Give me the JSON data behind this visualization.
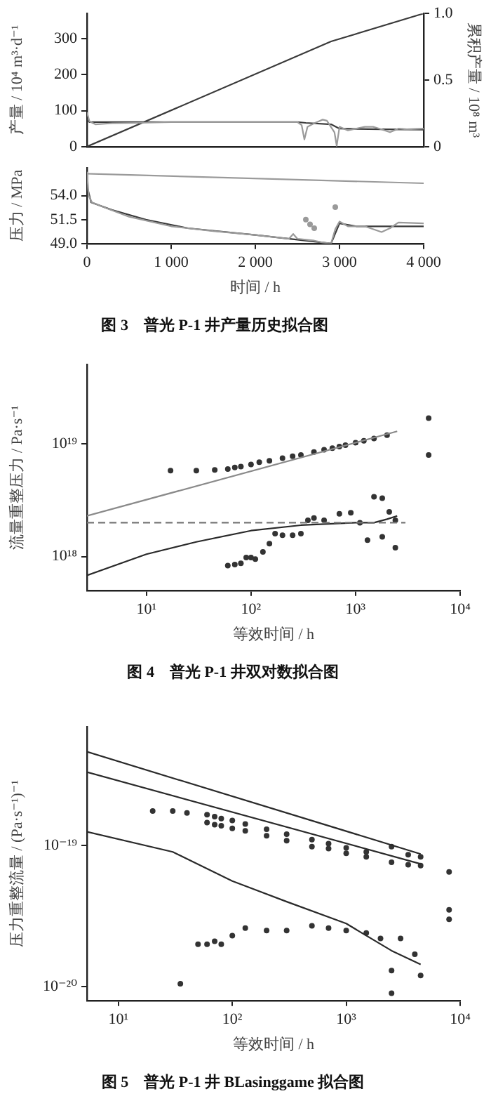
{
  "chart_data": [
    {
      "type": "line",
      "ylabel": "产量 / 10⁴ m³·d⁻¹",
      "y2label": "累积产量 / 10⁸ m³",
      "xlim": [
        0,
        4000
      ],
      "ylim": [
        0,
        370
      ],
      "yticks": [
        0,
        100,
        200,
        300
      ],
      "y2lim": [
        0,
        1
      ],
      "y2ticks": [
        0,
        0.5,
        {
          "value": 1,
          "label": "1.0"
        }
      ],
      "tick_labels": "y",
      "grid": false,
      "legend": false,
      "marker": "none",
      "series": [
        {
          "color": "#9a9a9a",
          "x": [
            0,
            30,
            100,
            300,
            600,
            1000,
            1500,
            2000,
            2400,
            2500,
            2550,
            2583,
            2620,
            2700,
            2750,
            2800,
            2850,
            2940,
            2967,
            3000,
            3100,
            3200,
            3300,
            3400,
            3500,
            3600,
            3700,
            3800,
            4000
          ],
          "values": [
            95,
            70,
            62,
            65,
            66,
            68,
            68,
            68,
            68,
            68,
            60,
            20,
            55,
            65,
            70,
            75,
            72,
            40,
            2,
            55,
            45,
            50,
            55,
            55,
            48,
            40,
            50,
            48,
            50
          ]
        },
        {
          "color": "#3a3a3a",
          "x": [
            0,
            30,
            100,
            500,
            1000,
            2000,
            2500,
            2600,
            2900,
            3000,
            3500,
            4000
          ],
          "values": [
            75,
            68,
            68,
            68,
            68,
            68,
            68,
            66,
            62,
            50,
            48,
            47
          ]
        },
        {
          "color": "#3a3a3a",
          "axis": "y2",
          "x": [
            0,
            2900,
            4000
          ],
          "values": [
            0,
            0.79,
            1.0
          ]
        }
      ]
    },
    {
      "type": "line",
      "title": "图 3　普光 P-1 井产量历史拟合图",
      "xlabel": "时间 / h",
      "ylabel": "压力 / MPa",
      "xlim": [
        0,
        4000
      ],
      "xticks": [
        0,
        {
          "value": 1000,
          "label": "1 000"
        },
        {
          "value": 2000,
          "label": "2 000"
        },
        {
          "value": 3000,
          "label": "3 000"
        },
        {
          "value": 4000,
          "label": "4 000"
        }
      ],
      "ylim": [
        49,
        56.9
      ],
      "yticks": [
        {
          "value": 49,
          "label": "49.0"
        },
        51.5,
        {
          "value": 54,
          "label": "54.0"
        }
      ],
      "grid": false,
      "legend": false,
      "marker": "none",
      "series": [
        {
          "color": "#9a9a9a",
          "x": [
            0,
            4000
          ],
          "values": [
            56.3,
            55.3
          ]
        },
        {
          "color": "#9a9a9a",
          "x": [
            0,
            20,
            60,
            200,
            500,
            1000,
            1500,
            2000,
            2400,
            2450,
            2500,
            2600,
            2700,
            2800,
            2900,
            2950,
            3000,
            3100,
            3300,
            3500,
            3600,
            3700,
            4000
          ],
          "values": [
            56.5,
            54,
            53.3,
            52.8,
            51.8,
            50.8,
            50.3,
            49.9,
            49.5,
            50,
            49.5,
            49.4,
            49.3,
            49.1,
            49,
            50.5,
            51.3,
            50.8,
            50.8,
            50.2,
            50.6,
            51.2,
            51.1
          ]
        },
        {
          "color": "#3a3a3a",
          "x": [
            0,
            50,
            300,
            700,
            1200,
            2000,
            2500,
            2800,
            2900,
            3000,
            3200,
            4000
          ],
          "values": [
            55,
            53.3,
            52.5,
            51.5,
            50.6,
            49.9,
            49.4,
            49.1,
            49.0,
            51.1,
            50.8,
            50.8
          ]
        },
        {
          "color": "#9a9a9a",
          "type": "scatter",
          "marker": "circle",
          "x": [
            2600,
            2650,
            2700,
            2950
          ],
          "values": [
            51.5,
            51,
            50.6,
            52.8
          ]
        }
      ]
    },
    {
      "type": "line",
      "title": "图 4　普光 P-1 井双对数拟合图",
      "xlabel": "等效时间 / h",
      "ylabel": "流量重整压力 / Pa·s⁻¹",
      "log": "xy",
      "xlim": [
        2.7,
        10000
      ],
      "xticks": [
        {
          "value": 10,
          "label": "10¹"
        },
        {
          "value": 100,
          "label": "10²"
        },
        {
          "value": 1000,
          "label": "10³"
        },
        {
          "value": 10000,
          "label": "10⁴"
        }
      ],
      "ylim": [
        5e+17,
        5.1e+19
      ],
      "yticks": [
        {
          "value": 1e+18,
          "label": "10¹⁸"
        },
        {
          "value": 1e+19,
          "label": "10¹⁹"
        }
      ],
      "grid": false,
      "legend": false,
      "marker": "none",
      "series": [
        {
          "color": "#8a8a8a",
          "x": [
            2.7,
            2500
          ],
          "values": [
            2.3e+18,
            1.3e+19
          ]
        },
        {
          "color": "#777777",
          "line_style": "dashed",
          "x": [
            2.7,
            3000
          ],
          "values": [
            2e+18,
            2e+18
          ]
        },
        {
          "color": "#2a2a2a",
          "x": [
            2.7,
            10,
            30,
            100,
            300,
            1000,
            1500,
            2000,
            2500
          ],
          "values": [
            6.8e+17,
            1.05e+18,
            1.35e+18,
            1.7e+18,
            1.9e+18,
            2e+18,
            2e+18,
            2.15e+18,
            2.3e+18
          ]
        },
        {
          "color": "#333333",
          "type": "scatter",
          "marker": "circle",
          "x": [
            17,
            30,
            45,
            60,
            70,
            80,
            100,
            120,
            150,
            200,
            250,
            300,
            400,
            500,
            600,
            700,
            800,
            1000,
            1200,
            1500,
            2000,
            5000,
            5000
          ],
          "values": [
            5.8e+18,
            5.8e+18,
            5.9e+18,
            6e+18,
            6.2e+18,
            6.3e+18,
            6.6e+18,
            6.9e+18,
            7.1e+18,
            7.5e+18,
            7.8e+18,
            8e+18,
            8.5e+18,
            8.9e+18,
            9.2e+18,
            9.5e+18,
            9.8e+18,
            1.03e+19,
            1.07e+19,
            1.12e+19,
            1.2e+19,
            1.7e+19,
            8e+18
          ]
        },
        {
          "color": "#333333",
          "type": "scatter",
          "marker": "circle",
          "x": [
            60,
            70,
            80,
            90,
            100,
            110,
            130,
            150,
            170,
            200,
            250,
            300,
            350,
            400,
            500,
            700,
            900,
            1100,
            1300,
            1500,
            1800,
            1800,
            2100,
            2400,
            2400
          ],
          "values": [
            8.3e+17,
            8.5e+17,
            8.7e+17,
            9.8e+17,
            9.8e+17,
            9.5e+17,
            1.1e+18,
            1.3e+18,
            1.6e+18,
            1.55e+18,
            1.55e+18,
            1.6e+18,
            2.1e+18,
            2.2e+18,
            2.1e+18,
            2.4e+18,
            2.45e+18,
            2e+18,
            1.4e+18,
            3.4e+18,
            3.3e+18,
            1.5e+18,
            2.5e+18,
            1.2e+18,
            2.1e+18
          ]
        }
      ]
    },
    {
      "type": "line",
      "title": "图 5　普光 P-1 井 BLasinggame 拟合图",
      "xlabel": "等效时间 / h",
      "ylabel": "压力重整流量 / (Pa·s⁻¹)⁻¹",
      "log": "xy",
      "xlim": [
        5.3,
        10000
      ],
      "xticks": [
        {
          "value": 10,
          "label": "10¹"
        },
        {
          "value": 100,
          "label": "10²"
        },
        {
          "value": 1000,
          "label": "10³"
        },
        {
          "value": 10000,
          "label": "10⁴"
        }
      ],
      "ylim": [
        8e-21,
        6.9e-19
      ],
      "yticks": [
        {
          "value": 1e-20,
          "label": "10⁻²⁰"
        },
        {
          "value": 1e-19,
          "label": "10⁻¹⁹"
        }
      ],
      "grid": false,
      "legend": false,
      "marker": "none",
      "series": [
        {
          "color": "#2a2a2a",
          "x": [
            5.3,
            4500
          ],
          "values": [
            4.6e-19,
            8.7e-20
          ]
        },
        {
          "color": "#2a2a2a",
          "x": [
            5.3,
            4500
          ],
          "values": [
            3.3e-19,
            7.4e-20
          ]
        },
        {
          "color": "#2a2a2a",
          "x": [
            5.3,
            30,
            100,
            300,
            1000,
            2500,
            4500
          ],
          "values": [
            1.25e-19,
            9e-20,
            5.6e-20,
            4e-20,
            2.8e-20,
            1.8e-20,
            1.44e-20
          ]
        },
        {
          "color": "#333333",
          "type": "scatter",
          "marker": "circle",
          "x": [
            20,
            30,
            40,
            60,
            70,
            80,
            100,
            130,
            200,
            300,
            500,
            700,
            1000,
            1500,
            2500,
            3500,
            4500,
            60,
            70,
            80,
            100,
            130,
            200,
            300,
            500,
            700,
            1000,
            1500,
            2500,
            3500,
            4500
          ],
          "values": [
            1.75e-19,
            1.75e-19,
            1.7e-19,
            1.65e-19,
            1.6e-19,
            1.55e-19,
            1.5e-19,
            1.42e-19,
            1.3e-19,
            1.2e-19,
            1.1e-19,
            1.03e-19,
            9.6e-20,
            9e-20,
            9.8e-20,
            8.6e-20,
            8.3e-20,
            1.45e-19,
            1.4e-19,
            1.38e-19,
            1.32e-19,
            1.27e-19,
            1.17e-19,
            1.08e-19,
            9.8e-20,
            9.5e-20,
            8.8e-20,
            8.3e-20,
            7.6e-20,
            7.3e-20,
            7.2e-20
          ]
        },
        {
          "color": "#333333",
          "type": "scatter",
          "marker": "circle",
          "x": [
            35,
            50,
            60,
            70,
            80,
            100,
            130,
            200,
            300,
            500,
            700,
            1000,
            1500,
            2000,
            2500,
            2500,
            3000,
            4000,
            4500,
            8000,
            8000,
            8000
          ],
          "values": [
            1.05e-20,
            2e-20,
            2e-20,
            2.1e-20,
            2e-20,
            2.3e-20,
            2.6e-20,
            2.5e-20,
            2.5e-20,
            2.7e-20,
            2.6e-20,
            2.5e-20,
            2.4e-20,
            2.2e-20,
            1.3e-20,
            9e-21,
            2.2e-20,
            1.7e-20,
            1.2e-20,
            6.5e-20,
            3.5e-20,
            3e-20
          ]
        }
      ]
    }
  ]
}
